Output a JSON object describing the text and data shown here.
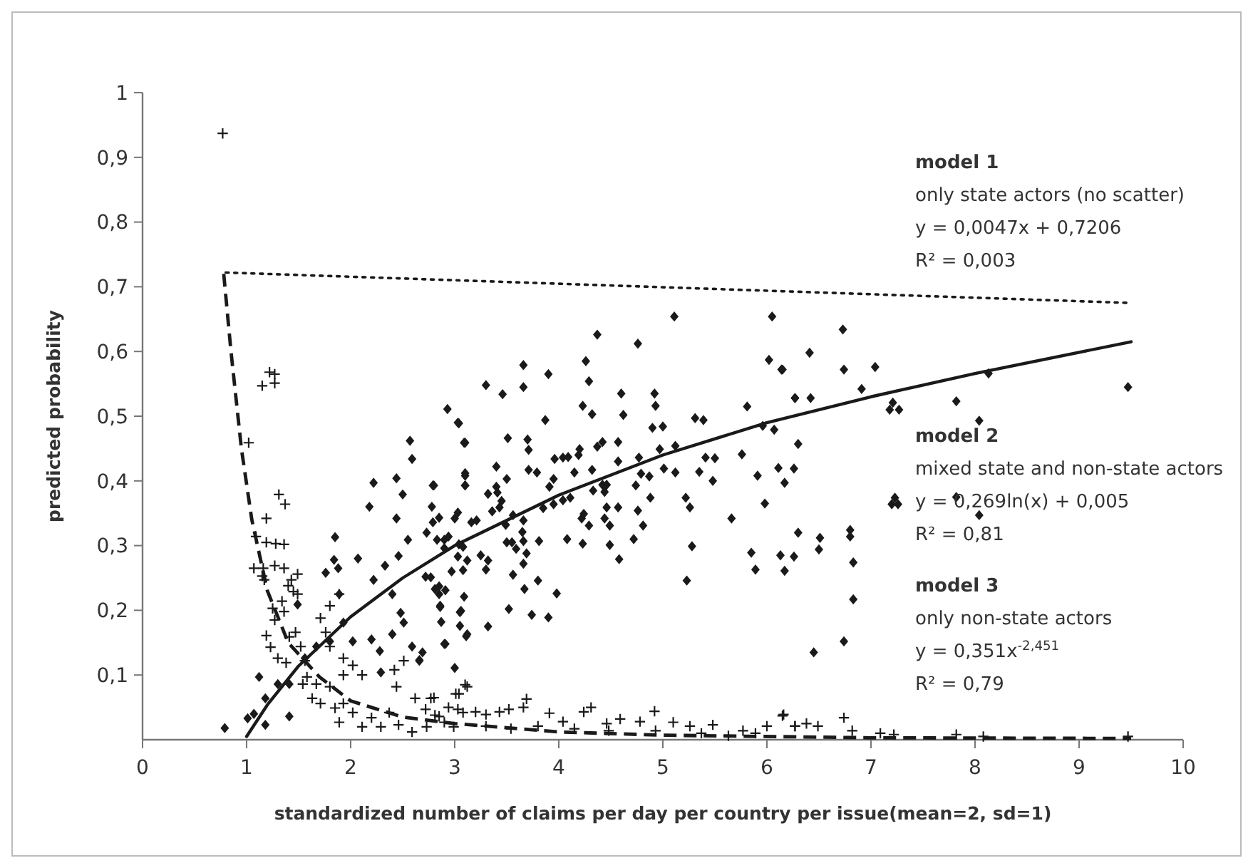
{
  "chart_data": {
    "type": "scatter",
    "xlabel": "standardized number of claims per day per country per issue(mean=2, sd=1)",
    "ylabel": "predicted probability",
    "xlim": [
      0,
      10
    ],
    "ylim": [
      0,
      1
    ],
    "xticks": [
      0,
      1,
      2,
      3,
      4,
      5,
      6,
      7,
      8,
      9,
      10
    ],
    "yticks": [
      {
        "value": 0.1,
        "label": "0,1"
      },
      {
        "value": 0.2,
        "label": "0,2"
      },
      {
        "value": 0.3,
        "label": "0,3"
      },
      {
        "value": 0.4,
        "label": "0,4"
      },
      {
        "value": 0.5,
        "label": "0,5"
      },
      {
        "value": 0.6,
        "label": "0,6"
      },
      {
        "value": 0.7,
        "label": "0,7"
      },
      {
        "value": 0.8,
        "label": "0,8"
      },
      {
        "value": 0.9,
        "label": "0,9"
      },
      {
        "value": 1,
        "label": "1"
      }
    ],
    "grid": false,
    "annotations": [
      "model 1",
      "only state actors (no scatter)",
      "y = 0,0047x + 0,7206",
      "R² = 0,003",
      "model 2",
      "mixed state and non-state actors",
      "y = 0,269ln(x) + 0,005",
      "R² = 0,81",
      "model 3",
      "only non-state actors",
      "y = 0,351x$^{-2,451}$",
      "R² = 0,79"
    ],
    "series": [
      {
        "type": "scatter",
        "marker": "diamond",
        "color": "#1a1a1a",
        "x": [
          0.79,
          1.01,
          1.12,
          1.07,
          1.18,
          1.18,
          1.3,
          1.41,
          1.49,
          1.41,
          1.56,
          1.67,
          1.76,
          1.85,
          1.88,
          1.84,
          1.89,
          1.8,
          1.93,
          2.02,
          2.07,
          2.2,
          2.22,
          2.18,
          2.22,
          2.28,
          2.29,
          2.33,
          2.44,
          2.44,
          2.5,
          2.46,
          2.55,
          2.57,
          2.59,
          2.4,
          2.48,
          2.51,
          2.4,
          2.59,
          2.66,
          2.73,
          2.8,
          2.77,
          2.85,
          2.86,
          2.9,
          2.93,
          3.04,
          3.1,
          3.1,
          3.1,
          2.9,
          3.0,
          3.08,
          3.04,
          3.06,
          3.12,
          3.0,
          3.66,
          4.26,
          3.9,
          3.3,
          3.66,
          3.46,
          4.29,
          3.03,
          3.09,
          3.87,
          4.23,
          4.32,
          4.6,
          4.62,
          4.92,
          4.93,
          4.9,
          5.0,
          5.81,
          6.02,
          6.14,
          6.27,
          5.96,
          6.07,
          6.3,
          5.31,
          5.39,
          3.51,
          3.7,
          3.71,
          3.4,
          3.1,
          3.1,
          2.79,
          2.78,
          3.5,
          3.4,
          3.71,
          3.79,
          3.96,
          4.04,
          4.09,
          4.19,
          4.2,
          4.37,
          4.42,
          4.57,
          4.57,
          4.77,
          4.97,
          5.12,
          5.01,
          5.12,
          5.41,
          5.5,
          5.35,
          5.48,
          5.76,
          5.91,
          6.11,
          6.17,
          6.26,
          5.98,
          5.22,
          5.26,
          5.28,
          5.23,
          5.66,
          5.85,
          5.89,
          4.79,
          4.74,
          4.87,
          4.32,
          4.15,
          4.42,
          4.46,
          4.33,
          4.44,
          3.95,
          3.91,
          3.85,
          3.95,
          4.04,
          4.11,
          4.88,
          4.46,
          4.57,
          4.76,
          4.24,
          4.22,
          4.29,
          4.44,
          4.49,
          4.81,
          4.72,
          4.08,
          4.23,
          4.49,
          4.58,
          3.81,
          3.8,
          3.98,
          3.9,
          3.74,
          3.52,
          3.32,
          3.67,
          3.56,
          3.66,
          3.69,
          3.59,
          3.5,
          3.55,
          3.66,
          3.65,
          3.66,
          3.56,
          3.49,
          3.36,
          3.43,
          3.45,
          3.32,
          3.41,
          3.21,
          3.16,
          3.3,
          3.32,
          3.25,
          3.12,
          3.03,
          3.08,
          2.97,
          2.85,
          2.81,
          2.91,
          2.72,
          2.86,
          2.87,
          2.91,
          3.05,
          3.09,
          3.11,
          3.05,
          2.69,
          2.66,
          3.03,
          2.85,
          2.79,
          2.94,
          2.83,
          2.9,
          7.2,
          7.26,
          7.23,
          7.82,
          8.04,
          6.3,
          6.51,
          6.5,
          6.13,
          6.26,
          6.17,
          6.8,
          6.8,
          6.83,
          6.83,
          6.74,
          6.45,
          6.73,
          6.41,
          6.15,
          6.74,
          7.04,
          6.27,
          6.42,
          6.91,
          7.21,
          7.18,
          7.27,
          7.82,
          8.13,
          8.04,
          9.47,
          5.11,
          6.05,
          4.37,
          4.76
        ],
        "values": [
          0.018,
          0.033,
          0.097,
          0.04,
          0.023,
          0.064,
          0.086,
          0.036,
          0.209,
          0.086,
          0.126,
          0.144,
          0.258,
          0.313,
          0.265,
          0.278,
          0.225,
          0.152,
          0.181,
          0.152,
          0.28,
          0.155,
          0.397,
          0.36,
          0.247,
          0.137,
          0.104,
          0.269,
          0.404,
          0.342,
          0.379,
          0.284,
          0.309,
          0.462,
          0.434,
          0.225,
          0.196,
          0.181,
          0.163,
          0.144,
          0.122,
          0.32,
          0.393,
          0.251,
          0.225,
          0.207,
          0.148,
          0.511,
          0.489,
          0.459,
          0.408,
          0.393,
          0.309,
          0.342,
          0.262,
          0.302,
          0.199,
          0.163,
          0.111,
          0.579,
          0.585,
          0.565,
          0.548,
          0.545,
          0.534,
          0.554,
          0.49,
          0.459,
          0.494,
          0.516,
          0.503,
          0.535,
          0.502,
          0.535,
          0.516,
          0.482,
          0.484,
          0.515,
          0.587,
          0.572,
          0.528,
          0.485,
          0.479,
          0.457,
          0.497,
          0.494,
          0.466,
          0.464,
          0.448,
          0.422,
          0.412,
          0.393,
          0.393,
          0.36,
          0.403,
          0.391,
          0.417,
          0.413,
          0.434,
          0.436,
          0.437,
          0.44,
          0.449,
          0.453,
          0.46,
          0.46,
          0.43,
          0.436,
          0.449,
          0.454,
          0.419,
          0.413,
          0.436,
          0.435,
          0.414,
          0.4,
          0.441,
          0.408,
          0.42,
          0.397,
          0.419,
          0.365,
          0.374,
          0.359,
          0.299,
          0.246,
          0.342,
          0.289,
          0.263,
          0.411,
          0.393,
          0.407,
          0.417,
          0.413,
          0.394,
          0.394,
          0.385,
          0.383,
          0.403,
          0.391,
          0.358,
          0.364,
          0.37,
          0.374,
          0.374,
          0.359,
          0.359,
          0.354,
          0.349,
          0.342,
          0.331,
          0.342,
          0.331,
          0.331,
          0.31,
          0.31,
          0.303,
          0.301,
          0.279,
          0.307,
          0.246,
          0.226,
          0.189,
          0.193,
          0.202,
          0.175,
          0.233,
          0.255,
          0.272,
          0.288,
          0.295,
          0.305,
          0.305,
          0.307,
          0.321,
          0.339,
          0.347,
          0.332,
          0.353,
          0.359,
          0.369,
          0.38,
          0.382,
          0.339,
          0.336,
          0.263,
          0.277,
          0.285,
          0.277,
          0.283,
          0.298,
          0.26,
          0.237,
          0.233,
          0.231,
          0.252,
          0.205,
          0.182,
          0.148,
          0.197,
          0.221,
          0.16,
          0.176,
          0.135,
          0.123,
          0.351,
          0.343,
          0.336,
          0.314,
          0.309,
          0.296,
          0.364,
          0.364,
          0.374,
          0.375,
          0.347,
          0.32,
          0.312,
          0.294,
          0.285,
          0.283,
          0.261,
          0.324,
          0.314,
          0.274,
          0.217,
          0.152,
          0.135,
          0.634,
          0.598,
          0.572,
          0.572,
          0.576,
          0.528,
          0.528,
          0.542,
          0.521,
          0.51,
          0.51,
          0.523,
          0.566,
          0.493,
          0.545,
          0.654,
          0.654,
          0.626,
          0.612
        ]
      },
      {
        "type": "scatter",
        "marker": "cross",
        "color": "#1a1a1a",
        "x": [
          0.77,
          1.15,
          1.22,
          1.27,
          1.27,
          1.02,
          1.31,
          1.37,
          1.19,
          1.09,
          1.19,
          1.28,
          1.36,
          1.07,
          1.16,
          1.27,
          1.36,
          1.15,
          1.17,
          1.43,
          1.49,
          1.4,
          1.45,
          1.49,
          1.25,
          1.27,
          1.34,
          1.36,
          1.19,
          1.23,
          1.3,
          1.38,
          1.41,
          1.47,
          1.52,
          1.56,
          1.71,
          1.8,
          1.89,
          1.76,
          1.8,
          1.93,
          2.02,
          2.11,
          1.93,
          2.42,
          2.44,
          2.51,
          2.62,
          2.77,
          3.01,
          3.12,
          1.58,
          1.67,
          1.8,
          1.71,
          1.85,
          1.93,
          2.02,
          1.89,
          2.11,
          2.2,
          2.29,
          2.37,
          2.46,
          2.59,
          2.73,
          2.81,
          2.9,
          2.99,
          3.08,
          1.63,
          1.54,
          3.1,
          3.04,
          2.8,
          2.94,
          3.03,
          2.72,
          2.85,
          3.2,
          3.3,
          3.43,
          3.52,
          3.69,
          3.66,
          3.91,
          4.04,
          4.24,
          4.31,
          4.46,
          4.59,
          4.78,
          4.92,
          5.1,
          5.26,
          5.48,
          5.63,
          5.77,
          6.0,
          6.15,
          6.27,
          3.3,
          3.54,
          3.8,
          4.15,
          4.48,
          4.93,
          5.37,
          5.89,
          6.16,
          6.27,
          6.38,
          6.49,
          6.74,
          6.82,
          7.09,
          7.22,
          7.82,
          8.08,
          9.47
        ],
        "values": [
          0.937,
          0.547,
          0.568,
          0.565,
          0.551,
          0.459,
          0.379,
          0.364,
          0.342,
          0.314,
          0.305,
          0.303,
          0.302,
          0.265,
          0.265,
          0.269,
          0.265,
          0.253,
          0.247,
          0.247,
          0.256,
          0.238,
          0.229,
          0.225,
          0.203,
          0.185,
          0.214,
          0.198,
          0.161,
          0.143,
          0.126,
          0.119,
          0.159,
          0.166,
          0.144,
          0.122,
          0.188,
          0.207,
          0.225,
          0.166,
          0.144,
          0.126,
          0.115,
          0.1,
          0.1,
          0.108,
          0.082,
          0.122,
          0.064,
          0.064,
          0.071,
          0.082,
          0.097,
          0.086,
          0.082,
          0.056,
          0.049,
          0.056,
          0.042,
          0.027,
          0.02,
          0.034,
          0.02,
          0.042,
          0.023,
          0.012,
          0.02,
          0.038,
          0.027,
          0.02,
          0.042,
          0.064,
          0.086,
          0.085,
          0.071,
          0.065,
          0.05,
          0.047,
          0.047,
          0.036,
          0.043,
          0.039,
          0.043,
          0.047,
          0.063,
          0.05,
          0.041,
          0.028,
          0.043,
          0.05,
          0.025,
          0.032,
          0.028,
          0.044,
          0.027,
          0.021,
          0.023,
          0.006,
          0.014,
          0.021,
          0.037,
          0.021,
          0.021,
          0.017,
          0.021,
          0.017,
          0.014,
          0.014,
          0.01,
          0.01,
          0.039,
          0.021,
          0.025,
          0.021,
          0.034,
          0.014,
          0.01,
          0.008,
          0.008,
          0.005,
          0.005
        ]
      },
      {
        "type": "line",
        "line_style": "dotted",
        "color": "#1a1a1a",
        "x": [
          0.8,
          9.5
        ],
        "values": [
          0.722,
          0.675
        ]
      },
      {
        "type": "line",
        "line_style": "solid",
        "color": "#1a1a1a",
        "x": [
          1.0,
          1.2,
          1.5,
          2,
          2.5,
          3,
          4,
          5,
          6,
          7,
          8,
          9.5
        ],
        "values": [
          0.005,
          0.054,
          0.114,
          0.19,
          0.25,
          0.3,
          0.378,
          0.44,
          0.49,
          0.53,
          0.566,
          0.615
        ]
      },
      {
        "type": "line",
        "line_style": "dashed",
        "color": "#1a1a1a",
        "x": [
          0.78,
          0.85,
          0.95,
          1.05,
          1.2,
          1.4,
          1.7,
          2,
          2.5,
          3,
          4,
          5,
          7,
          9.5
        ],
        "values": [
          0.72,
          0.6,
          0.45,
          0.34,
          0.23,
          0.15,
          0.097,
          0.06,
          0.035,
          0.025,
          0.012,
          0.007,
          0.003,
          0.002
        ]
      }
    ]
  }
}
